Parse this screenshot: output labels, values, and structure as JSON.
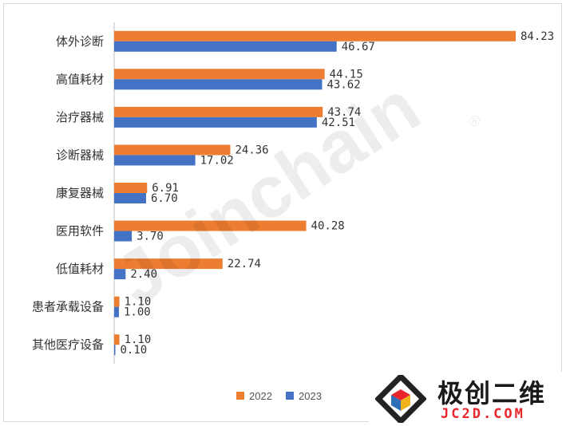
{
  "chart_data": {
    "type": "bar",
    "orientation": "horizontal",
    "categories": [
      "体外诊断",
      "高值耗材",
      "治疗器械",
      "诊断器械",
      "康复器械",
      "医用软件",
      "低值耗材",
      "患者承载设备",
      "其他医疗设备"
    ],
    "series": [
      {
        "name": "2022",
        "color": "#ed7d31",
        "values": [
          84.23,
          44.15,
          43.74,
          24.36,
          6.91,
          40.28,
          22.74,
          1.1,
          1.1
        ],
        "labels": [
          "84.23",
          "44.15",
          "43.74",
          "24.36",
          "6.91",
          "40.28",
          "22.74",
          "1.10",
          "1.10"
        ]
      },
      {
        "name": "2023",
        "color": "#4472c4",
        "values": [
          46.67,
          43.62,
          42.51,
          17.02,
          6.7,
          3.7,
          2.4,
          1.0,
          0.1
        ],
        "labels": [
          "46.67",
          "43.62",
          "42.51",
          "17.02",
          "6.70",
          "3.70",
          "2.40",
          "1.00",
          "0.10"
        ]
      }
    ],
    "xlim": [
      0,
      88
    ],
    "grid": false,
    "legend_position": "bottom"
  },
  "watermark": {
    "text": "Joinchain",
    "mark": "®"
  },
  "logo": {
    "name_cn": "极创二维",
    "name_en": "JC2D.COM"
  }
}
